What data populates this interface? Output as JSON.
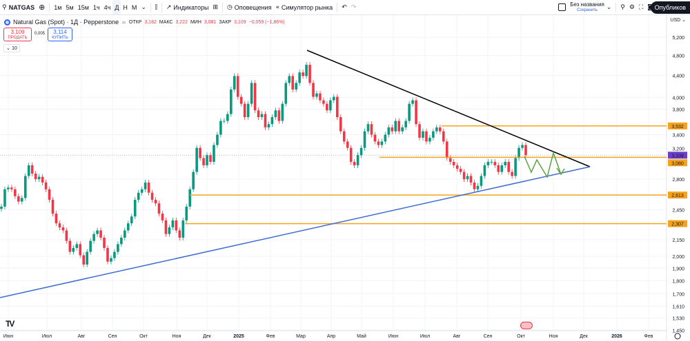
{
  "toolbar": {
    "symbol": "NATGAS",
    "intervals": [
      "1м",
      "5м",
      "15м",
      "1ч",
      "4ч",
      "Д",
      "Н",
      "М"
    ],
    "active_interval": "Д",
    "indicators": "Индикаторы",
    "alerts": "Оповещения",
    "replay": "Симулятор рынка",
    "layout_name": "Без названия",
    "layout_save": "Сохранить",
    "publish": "Опубликов"
  },
  "legend": {
    "title": "Natural Gas (Spot) · 1Д · Pepperstone",
    "open_label": "ОТКР",
    "open": "3,182",
    "high_label": "МАКС",
    "high": "3,222",
    "low_label": "МИН",
    "low": "3,081",
    "close_label": "ЗАКР",
    "close": "3,109",
    "change": "−0,059 (−1,86%)"
  },
  "trade": {
    "sell_price": "3,109",
    "sell_label": "ПРОДАТЬ",
    "spread": "0,005",
    "buy_price": "3,114",
    "buy_label": "КУПИТЬ"
  },
  "volume_toggle": "10",
  "currency": "USD",
  "colors": {
    "up": "#089981",
    "down": "#f23645",
    "level": "#f7a21b",
    "resistance": "#000000",
    "support": "#3d6bd3",
    "projection": "#5aa341",
    "current": "#6a3ec9"
  },
  "chart_data": {
    "type": "candlestick",
    "scale": "log",
    "ylim": [
      1.42,
      5.5
    ],
    "y_ticks": [
      "5,200",
      "4,800",
      "4,400",
      "4,000",
      "3,800",
      "3,400",
      "3,200",
      "2,800",
      "2,450",
      "2,150",
      "2,000",
      "1,900",
      "1,800",
      "1,700",
      "1,610",
      "1,530",
      "1,450"
    ],
    "x_ticks": [
      "Июн",
      "Июл",
      "Авг",
      "Сен",
      "Окт",
      "Ноя",
      "Дек",
      "2025",
      "Фев",
      "Мар",
      "Апр",
      "Май",
      "Июн",
      "Июл",
      "Авг",
      "Сен",
      "Окт",
      "Ноя",
      "Дек",
      "2026",
      "Фев"
    ],
    "closes": [
      2.485,
      2.68,
      2.7,
      2.68,
      2.6,
      2.54,
      2.58,
      2.84,
      2.975,
      2.87,
      2.8,
      2.83,
      2.76,
      2.68,
      2.56,
      2.41,
      2.31,
      2.27,
      2.24,
      2.14,
      2.04,
      2.075,
      2.11,
      2.01,
      1.93,
      2.04,
      2.14,
      2.205,
      2.24,
      2.17,
      2.075,
      1.955,
      1.985,
      2.04,
      2.11,
      2.17,
      2.24,
      2.31,
      2.38,
      2.56,
      2.64,
      2.68,
      2.76,
      2.64,
      2.56,
      2.52,
      2.41,
      2.34,
      2.205,
      2.27,
      2.34,
      2.24,
      2.17,
      2.34,
      2.485,
      2.68,
      2.89,
      3.21,
      3.07,
      2.975,
      3.11,
      3.02,
      3.25,
      3.4,
      3.61,
      3.61,
      3.72,
      4.14,
      4.39,
      4.01,
      3.89,
      3.67,
      3.89,
      4.26,
      3.78,
      3.67,
      3.72,
      3.51,
      3.56,
      3.67,
      3.78,
      3.61,
      3.89,
      4.26,
      4.39,
      4.14,
      4.26,
      4.46,
      4.39,
      4.61,
      4.26,
      4.01,
      4.07,
      3.95,
      3.89,
      3.78,
      3.95,
      4.01,
      3.67,
      3.45,
      3.3,
      3.21,
      3.02,
      2.975,
      3.11,
      3.21,
      3.45,
      3.56,
      3.4,
      3.3,
      3.25,
      3.3,
      3.4,
      3.51,
      3.45,
      3.61,
      3.45,
      3.51,
      3.61,
      3.89,
      3.95,
      3.56,
      3.355,
      3.45,
      3.3,
      3.355,
      3.45,
      3.51,
      3.45,
      3.3,
      3.07,
      3.02,
      2.975,
      2.93,
      2.89,
      2.8,
      2.84,
      2.76,
      2.68,
      2.72,
      2.84,
      2.975,
      3.02,
      3.02,
      2.975,
      2.89,
      2.975,
      3.02,
      2.89,
      2.84,
      3.07,
      3.21,
      3.25,
      3.109
    ],
    "levels": [
      {
        "price": 3.532,
        "label": "3,532"
      },
      {
        "price": 3.08,
        "label": "3,080"
      },
      {
        "price": 2.613,
        "label": "2,613"
      },
      {
        "price": 2.307,
        "label": "2,307"
      }
    ],
    "current_price": {
      "price": 3.109,
      "label": "3,109"
    }
  }
}
